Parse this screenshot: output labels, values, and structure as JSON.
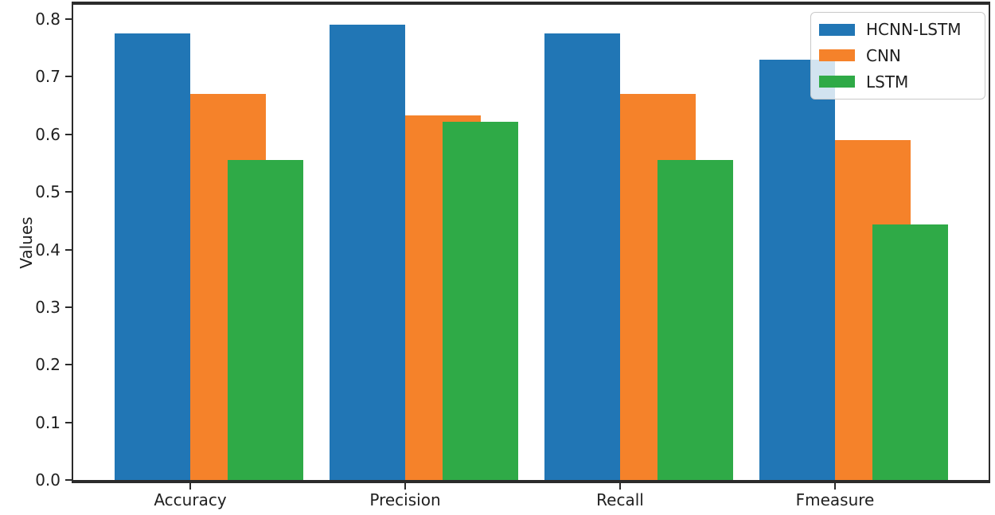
{
  "chart_data": {
    "type": "bar",
    "title": "",
    "xlabel": "",
    "ylabel": "Values",
    "categories": [
      "Accuracy",
      "Precision",
      "Recall",
      "Fmeasure"
    ],
    "series": [
      {
        "name": "HCNN-LSTM",
        "color": "#2176b5",
        "values": [
          0.775,
          0.79,
          0.775,
          0.73
        ]
      },
      {
        "name": "CNN",
        "color": "#f5822a",
        "values": [
          0.67,
          0.633,
          0.67,
          0.59
        ]
      },
      {
        "name": "LSTM",
        "color": "#2faa47",
        "values": [
          0.555,
          0.622,
          0.555,
          0.444
        ]
      }
    ],
    "ylim": [
      0,
      0.825
    ],
    "yticks": [
      "0.0",
      "0.1",
      "0.2",
      "0.3",
      "0.4",
      "0.5",
      "0.6",
      "0.7",
      "0.8"
    ],
    "grid": false,
    "legend_position": "upper right",
    "colors": {
      "spine": "#2b2b2b",
      "text": "#1f1f1f",
      "plot_background": "#ffffff",
      "legend_background": "rgba(255,255,255,0.8)",
      "legend_border": "#c9c9c9"
    },
    "bar_layout_note": "CNN bar starts at category tick; HCNN-LSTM bar ends at tick; LSTM bar overlaps right half of CNN bar and is drawn on top"
  }
}
